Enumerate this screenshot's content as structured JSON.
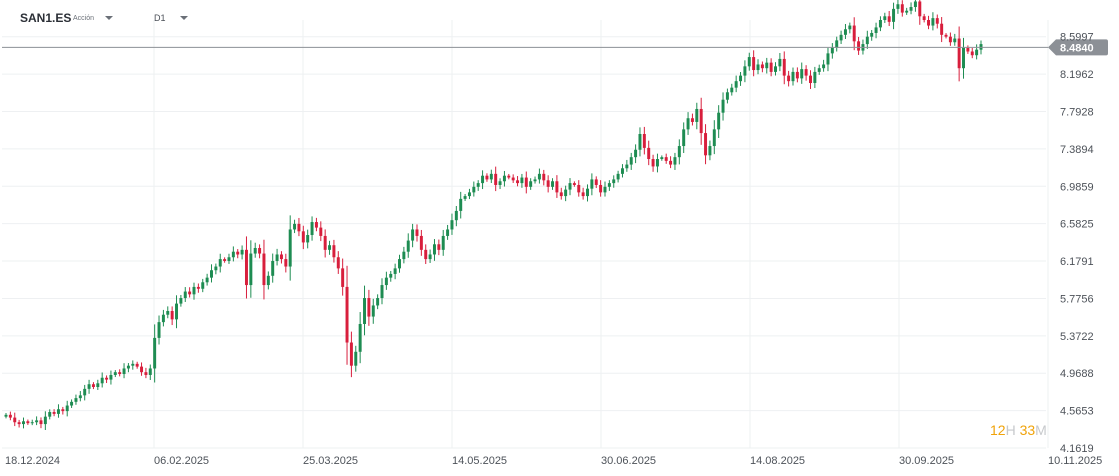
{
  "header": {
    "symbol": "SAN1.ES",
    "instrument_type": "Acción",
    "timeframe": "D1"
  },
  "timer": {
    "hours": "12",
    "hours_unit": "H",
    "minutes": "33",
    "minutes_unit": "M"
  },
  "colors": {
    "up": "#1e8c52",
    "down": "#d81e3c",
    "grid": "#eef0f2",
    "axis_text": "#4d5259",
    "price_line": "#8c9096",
    "price_badge_bg": "#8c9096",
    "price_badge_text": "#ffffff",
    "timer_number": "#f0a30a",
    "timer_unit": "#c7c9cc"
  },
  "chart_data": {
    "type": "candlestick",
    "title": "",
    "xlabel": "",
    "ylabel": "",
    "grid": true,
    "price_axis_position": "right",
    "ylim": [
      4.1619,
      8.78
    ],
    "y_tick_labels": [
      "8.5997",
      "8.1962",
      "7.7928",
      "7.3894",
      "6.9859",
      "6.5825",
      "6.1791",
      "5.7756",
      "5.3722",
      "4.9688",
      "4.5653",
      "4.1619"
    ],
    "x_tick_labels": [
      "18.12.2024",
      "06.02.2025",
      "25.03.2025",
      "14.05.2025",
      "30.06.2025",
      "14.08.2025",
      "30.09.2025",
      "10.11.2025"
    ],
    "last_price": "8.4840",
    "series_close": [
      4.52,
      4.49,
      4.44,
      4.42,
      4.45,
      4.43,
      4.44,
      4.46,
      4.42,
      4.5,
      4.55,
      4.53,
      4.58,
      4.56,
      4.62,
      4.66,
      4.7,
      4.73,
      4.8,
      4.85,
      4.82,
      4.86,
      4.92,
      4.9,
      4.95,
      4.98,
      4.96,
      5.02,
      5.05,
      5.07,
      5.04,
      4.98,
      4.95,
      5.02,
      5.35,
      5.52,
      5.6,
      5.64,
      5.55,
      5.72,
      5.78,
      5.85,
      5.82,
      5.9,
      5.88,
      5.95,
      6.0,
      6.08,
      6.12,
      6.2,
      6.18,
      6.22,
      6.28,
      6.25,
      6.3,
      5.92,
      6.26,
      6.32,
      6.26,
      5.92,
      6.02,
      6.18,
      6.25,
      6.2,
      6.12,
      6.52,
      6.58,
      6.5,
      6.38,
      6.46,
      6.6,
      6.54,
      6.45,
      6.3,
      6.35,
      6.22,
      6.1,
      5.9,
      5.3,
      5.05,
      5.2,
      5.5,
      5.78,
      5.58,
      5.7,
      5.78,
      5.92,
      6.0,
      6.04,
      6.1,
      6.2,
      6.28,
      6.4,
      6.52,
      6.45,
      6.3,
      6.2,
      6.25,
      6.36,
      6.3,
      6.45,
      6.52,
      6.62,
      6.72,
      6.85,
      6.88,
      6.92,
      6.98,
      7.02,
      7.1,
      7.06,
      7.12,
      7.0,
      7.04,
      7.1,
      7.08,
      7.05,
      7.02,
      7.08,
      6.98,
      7.04,
      7.06,
      7.12,
      7.05,
      6.98,
      7.04,
      6.92,
      6.88,
      6.95,
      7.02,
      7.0,
      6.92,
      6.88,
      6.96,
      7.06,
      7.0,
      6.92,
      6.98,
      7.02,
      7.06,
      7.12,
      7.18,
      7.22,
      7.3,
      7.38,
      7.55,
      7.4,
      7.28,
      7.2,
      7.28,
      7.3,
      7.26,
      7.22,
      7.3,
      7.42,
      7.6,
      7.72,
      7.68,
      7.82,
      7.56,
      7.32,
      7.42,
      7.6,
      7.78,
      7.92,
      8.0,
      8.05,
      8.12,
      8.18,
      8.28,
      8.38,
      8.24,
      8.3,
      8.26,
      8.32,
      8.22,
      8.28,
      8.36,
      8.18,
      8.12,
      8.22,
      8.15,
      8.25,
      8.18,
      8.1,
      8.22,
      8.26,
      8.3,
      8.42,
      8.48,
      8.56,
      8.62,
      8.68,
      8.72,
      8.55,
      8.45,
      8.52,
      8.6,
      8.64,
      8.7,
      8.78,
      8.82,
      8.76,
      8.9,
      8.95,
      8.86,
      8.88,
      8.92,
      8.98,
      8.82,
      8.78,
      8.72,
      8.8,
      8.74,
      8.62,
      8.6,
      8.54,
      8.58,
      8.26,
      8.48,
      8.44,
      8.4,
      8.46,
      8.52
    ]
  }
}
